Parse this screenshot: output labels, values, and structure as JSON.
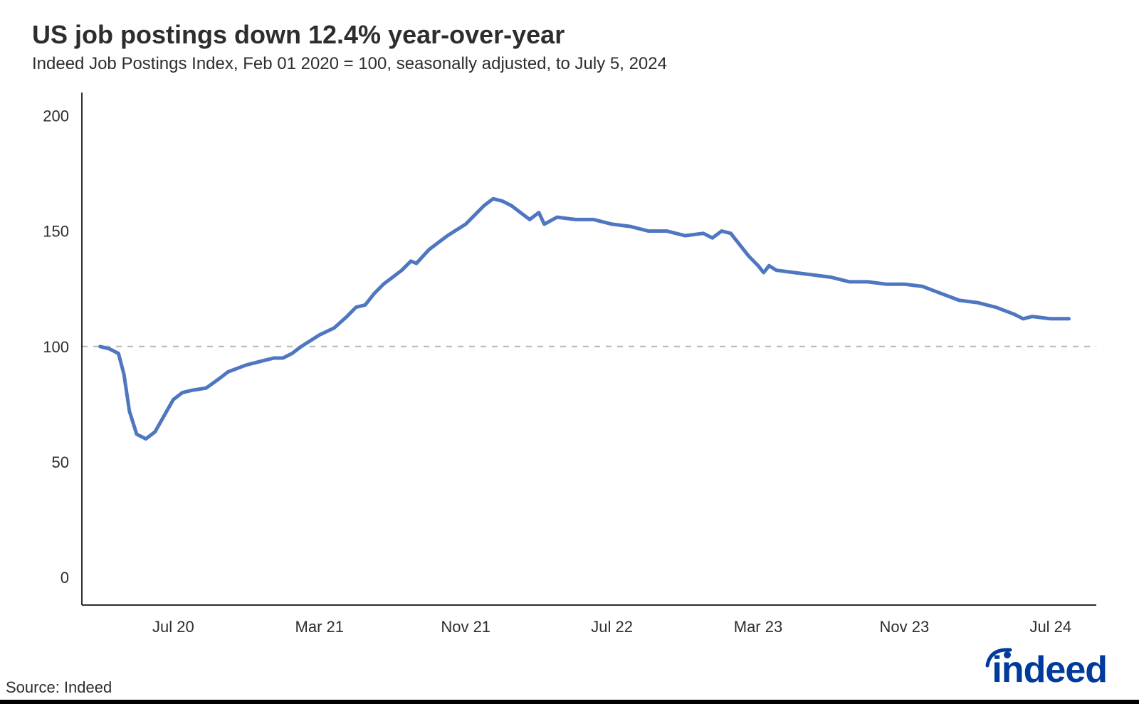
{
  "title": "US job postings down 12.4% year-over-year",
  "subtitle": "Indeed Job Postings Index, Feb 01 2020 = 100, seasonally adjusted, to July 5, 2024",
  "source": "Source: Indeed",
  "logo_text": "indeed",
  "chart": {
    "type": "line",
    "background_color": "#ffffff",
    "line_color": "#4f76c0",
    "line_width": 5,
    "axis_color": "#2d2d2d",
    "axis_width": 2,
    "reference_value": 100,
    "reference_color": "#b8b8b8",
    "reference_dash": "8 8",
    "label_fontsize": 22,
    "label_color": "#2d2d2d",
    "ylim": [
      -12,
      210
    ],
    "yticks": [
      0,
      50,
      100,
      150,
      200
    ],
    "x_start_month": 1,
    "x_end_month": 54,
    "xlim": [
      0,
      55.5
    ],
    "xticks": [
      {
        "pos": 5,
        "label": "Jul 20"
      },
      {
        "pos": 13,
        "label": "Mar 21"
      },
      {
        "pos": 21,
        "label": "Nov 21"
      },
      {
        "pos": 29,
        "label": "Jul 22"
      },
      {
        "pos": 37,
        "label": "Mar 23"
      },
      {
        "pos": 45,
        "label": "Nov 23"
      },
      {
        "pos": 53,
        "label": "Jul 24"
      }
    ],
    "series": [
      {
        "x": 1.0,
        "y": 100
      },
      {
        "x": 1.5,
        "y": 99
      },
      {
        "x": 2.0,
        "y": 97
      },
      {
        "x": 2.3,
        "y": 88
      },
      {
        "x": 2.6,
        "y": 72
      },
      {
        "x": 3.0,
        "y": 62
      },
      {
        "x": 3.5,
        "y": 60
      },
      {
        "x": 4.0,
        "y": 63
      },
      {
        "x": 4.5,
        "y": 70
      },
      {
        "x": 5.0,
        "y": 77
      },
      {
        "x": 5.5,
        "y": 80
      },
      {
        "x": 6.0,
        "y": 81
      },
      {
        "x": 6.8,
        "y": 82
      },
      {
        "x": 7.5,
        "y": 86
      },
      {
        "x": 8.0,
        "y": 89
      },
      {
        "x": 9.0,
        "y": 92
      },
      {
        "x": 10.0,
        "y": 94
      },
      {
        "x": 10.5,
        "y": 95
      },
      {
        "x": 11.0,
        "y": 95
      },
      {
        "x": 11.5,
        "y": 97
      },
      {
        "x": 12.0,
        "y": 100
      },
      {
        "x": 13.0,
        "y": 105
      },
      {
        "x": 13.8,
        "y": 108
      },
      {
        "x": 14.5,
        "y": 113
      },
      {
        "x": 15.0,
        "y": 117
      },
      {
        "x": 15.5,
        "y": 118
      },
      {
        "x": 16.0,
        "y": 123
      },
      {
        "x": 16.5,
        "y": 127
      },
      {
        "x": 17.0,
        "y": 130
      },
      {
        "x": 17.5,
        "y": 133
      },
      {
        "x": 18.0,
        "y": 137
      },
      {
        "x": 18.3,
        "y": 136
      },
      {
        "x": 19.0,
        "y": 142
      },
      {
        "x": 20.0,
        "y": 148
      },
      {
        "x": 21.0,
        "y": 153
      },
      {
        "x": 22.0,
        "y": 161
      },
      {
        "x": 22.5,
        "y": 164
      },
      {
        "x": 23.0,
        "y": 163
      },
      {
        "x": 23.5,
        "y": 161
      },
      {
        "x": 24.0,
        "y": 158
      },
      {
        "x": 24.5,
        "y": 155
      },
      {
        "x": 25.0,
        "y": 158
      },
      {
        "x": 25.3,
        "y": 153
      },
      {
        "x": 26.0,
        "y": 156
      },
      {
        "x": 27.0,
        "y": 155
      },
      {
        "x": 28.0,
        "y": 155
      },
      {
        "x": 29.0,
        "y": 153
      },
      {
        "x": 30.0,
        "y": 152
      },
      {
        "x": 31.0,
        "y": 150
      },
      {
        "x": 32.0,
        "y": 150
      },
      {
        "x": 33.0,
        "y": 148
      },
      {
        "x": 34.0,
        "y": 149
      },
      {
        "x": 34.5,
        "y": 147
      },
      {
        "x": 35.0,
        "y": 150
      },
      {
        "x": 35.5,
        "y": 149
      },
      {
        "x": 36.0,
        "y": 144
      },
      {
        "x": 36.5,
        "y": 139
      },
      {
        "x": 37.0,
        "y": 135
      },
      {
        "x": 37.3,
        "y": 132
      },
      {
        "x": 37.6,
        "y": 135
      },
      {
        "x": 38.0,
        "y": 133
      },
      {
        "x": 39.0,
        "y": 132
      },
      {
        "x": 40.0,
        "y": 131
      },
      {
        "x": 41.0,
        "y": 130
      },
      {
        "x": 42.0,
        "y": 128
      },
      {
        "x": 43.0,
        "y": 128
      },
      {
        "x": 44.0,
        "y": 127
      },
      {
        "x": 45.0,
        "y": 127
      },
      {
        "x": 46.0,
        "y": 126
      },
      {
        "x": 47.0,
        "y": 123
      },
      {
        "x": 48.0,
        "y": 120
      },
      {
        "x": 49.0,
        "y": 119
      },
      {
        "x": 50.0,
        "y": 117
      },
      {
        "x": 51.0,
        "y": 114
      },
      {
        "x": 51.5,
        "y": 112
      },
      {
        "x": 52.0,
        "y": 113
      },
      {
        "x": 53.0,
        "y": 112
      },
      {
        "x": 54.0,
        "y": 112
      }
    ]
  },
  "logo_color": "#003a9b"
}
